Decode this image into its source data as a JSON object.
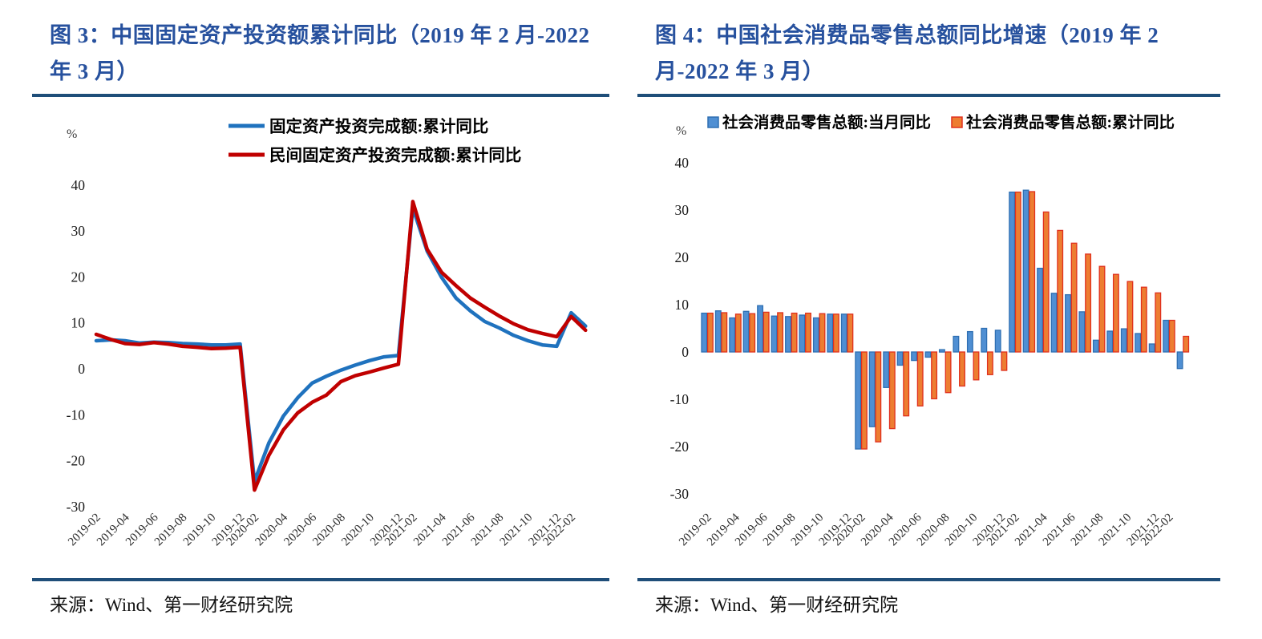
{
  "page": {
    "background": "#ffffff"
  },
  "colors": {
    "title_blue": "#27519e",
    "rule_blue": "#1f4e79",
    "axis_text": "#3a3a3a",
    "legend_text": "#000000"
  },
  "chart_data": [
    {
      "id": "fig3",
      "type": "line",
      "title": "图 3：中国固定资产投资额累计同比（2019 年 2 月-2022 年 3 月）",
      "unit_label": "%",
      "ylim": [
        -30,
        40
      ],
      "yticks": [
        40,
        30,
        20,
        10,
        0,
        -10,
        -20,
        -30
      ],
      "grid": false,
      "legend_position": "top",
      "x": [
        "2019-02",
        "2019-03",
        "2019-04",
        "2019-05",
        "2019-06",
        "2019-07",
        "2019-08",
        "2019-09",
        "2019-10",
        "2019-11",
        "2019-12",
        "2020-02",
        "2020-03",
        "2020-04",
        "2020-05",
        "2020-06",
        "2020-07",
        "2020-08",
        "2020-09",
        "2020-10",
        "2020-11",
        "2020-12",
        "2021-02",
        "2021-03",
        "2021-04",
        "2021-05",
        "2021-06",
        "2021-07",
        "2021-08",
        "2021-09",
        "2021-10",
        "2021-11",
        "2021-12",
        "2022-02",
        "2022-03"
      ],
      "xtick_labels": [
        "2019-02",
        "2019-04",
        "2019-06",
        "2019-08",
        "2019-10",
        "2019-12",
        "2020-02",
        "2020-04",
        "2020-06",
        "2020-08",
        "2020-10",
        "2020-12",
        "2021-02",
        "2021-04",
        "2021-06",
        "2021-08",
        "2021-10",
        "2021-12",
        "2022-02"
      ],
      "series": [
        {
          "name": "固定资产投资完成额:累计同比",
          "color": "#1f72be",
          "values": [
            6.1,
            6.3,
            6.1,
            5.6,
            5.8,
            5.7,
            5.5,
            5.4,
            5.2,
            5.2,
            5.4,
            -24.5,
            -16.1,
            -10.3,
            -6.3,
            -3.1,
            -1.6,
            -0.3,
            0.8,
            1.8,
            2.6,
            2.9,
            35.0,
            25.6,
            19.9,
            15.4,
            12.6,
            10.3,
            8.9,
            7.3,
            6.1,
            5.2,
            4.9,
            12.2,
            9.3
          ]
        },
        {
          "name": "民间固定资产投资完成额:累计同比",
          "color": "#c00000",
          "values": [
            7.5,
            6.4,
            5.5,
            5.3,
            5.7,
            5.4,
            4.9,
            4.7,
            4.4,
            4.5,
            4.7,
            -26.4,
            -18.8,
            -13.3,
            -9.6,
            -7.3,
            -5.7,
            -2.8,
            -1.5,
            -0.7,
            0.2,
            1.0,
            36.4,
            26.0,
            21.0,
            18.1,
            15.4,
            13.4,
            11.5,
            9.8,
            8.5,
            7.7,
            7.0,
            11.4,
            8.4
          ]
        }
      ],
      "source": "来源：Wind、第一财经研究院"
    },
    {
      "id": "fig4",
      "type": "bar",
      "title": "图 4：中国社会消费品零售总额同比增速（2019 年 2 月-2022 年 3 月）",
      "unit_label": "%",
      "ylim": [
        -30,
        40
      ],
      "yticks": [
        40,
        30,
        20,
        10,
        0,
        -10,
        -20,
        -30
      ],
      "grid": false,
      "legend_position": "top",
      "x": [
        "2019-02",
        "2019-03",
        "2019-04",
        "2019-05",
        "2019-06",
        "2019-07",
        "2019-08",
        "2019-09",
        "2019-10",
        "2019-11",
        "2019-12",
        "2020-02",
        "2020-03",
        "2020-04",
        "2020-05",
        "2020-06",
        "2020-07",
        "2020-08",
        "2020-09",
        "2020-10",
        "2020-11",
        "2020-12",
        "2021-02",
        "2021-03",
        "2021-04",
        "2021-05",
        "2021-06",
        "2021-07",
        "2021-08",
        "2021-09",
        "2021-10",
        "2021-11",
        "2021-12",
        "2022-02",
        "2022-03"
      ],
      "xtick_labels": [
        "2019-02",
        "2019-04",
        "2019-06",
        "2019-08",
        "2019-10",
        "2019-12",
        "2020-02",
        "2020-04",
        "2020-06",
        "2020-08",
        "2020-10",
        "2020-12",
        "2021-02",
        "2021-04",
        "2021-06",
        "2021-08",
        "2021-10",
        "2021-12",
        "2022-02"
      ],
      "series": [
        {
          "name": "社会消费品零售总额:当月同比",
          "fill": "#4f8fd3",
          "stroke": "#2e6fb2",
          "values": [
            8.2,
            8.7,
            7.2,
            8.6,
            9.8,
            7.6,
            7.5,
            7.8,
            7.2,
            8.0,
            8.0,
            -20.5,
            -15.8,
            -7.5,
            -2.8,
            -1.8,
            -1.1,
            0.5,
            3.3,
            4.3,
            5.0,
            4.6,
            33.8,
            34.2,
            17.7,
            12.4,
            12.1,
            8.5,
            2.5,
            4.4,
            4.9,
            3.9,
            1.7,
            6.7,
            -3.5
          ]
        },
        {
          "name": "社会消费品零售总额:累计同比",
          "fill": "#ed7d31",
          "stroke": "#e0301e",
          "values": [
            8.2,
            8.3,
            8.0,
            8.1,
            8.4,
            8.3,
            8.2,
            8.2,
            8.1,
            8.0,
            8.0,
            -20.5,
            -19.0,
            -16.2,
            -13.5,
            -11.4,
            -9.9,
            -8.6,
            -7.2,
            -5.9,
            -4.8,
            -3.9,
            33.8,
            33.9,
            29.6,
            25.7,
            23.0,
            20.7,
            18.1,
            16.4,
            14.9,
            13.7,
            12.5,
            6.7,
            3.3
          ]
        }
      ],
      "source": "来源：Wind、第一财经研究院"
    }
  ]
}
